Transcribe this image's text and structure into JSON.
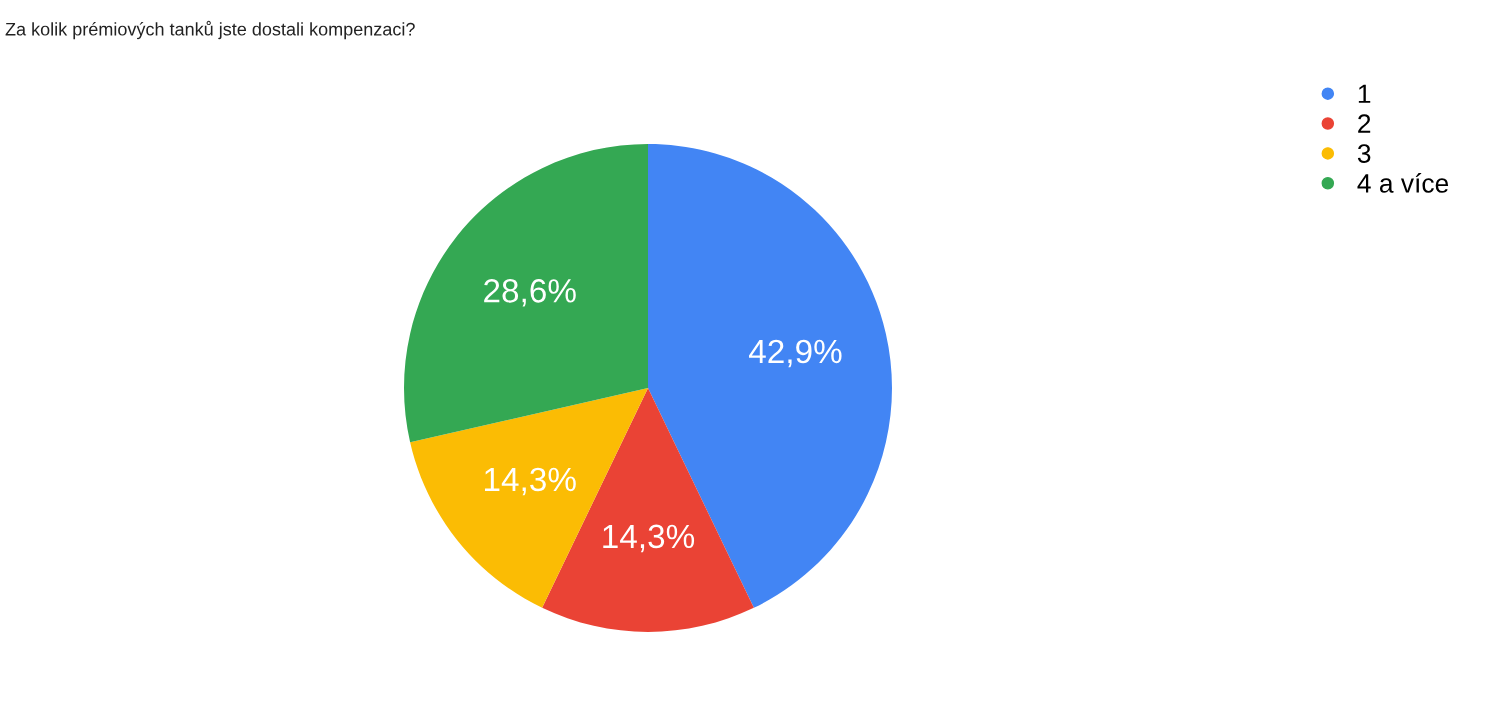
{
  "chart_data": {
    "type": "pie",
    "title": "Za kolik prémiových tanků jste dostali kompenzaci?",
    "categories": [
      "1",
      "2",
      "3",
      "4 a více"
    ],
    "values": [
      42.9,
      14.3,
      14.3,
      28.6
    ],
    "colors": [
      "#4285f4",
      "#ea4335",
      "#fbbc04",
      "#34a853"
    ],
    "value_labels": [
      "42,9%",
      "14,3%",
      "14,3%",
      "28,6%"
    ],
    "legend": "top right"
  }
}
